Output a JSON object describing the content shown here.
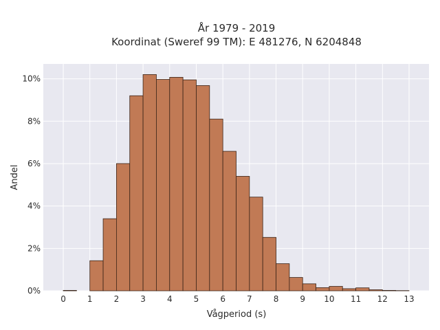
{
  "chart_data": {
    "type": "bar",
    "title_lines": [
      "År 1979 - 2019",
      "Koordinat (Sweref 99 TM): E 481276, N 6204848"
    ],
    "xlabel": "Vågperiod (s)",
    "ylabel": "Andel",
    "x_ticks": [
      "0",
      "1",
      "2",
      "3",
      "4",
      "5",
      "6",
      "7",
      "8",
      "9",
      "10",
      "11",
      "12",
      "13"
    ],
    "y_ticks": [
      "0%",
      "2%",
      "4%",
      "6%",
      "8%",
      "10%"
    ],
    "xlim": [
      -0.75,
      13.75
    ],
    "ylim": [
      0,
      10.7
    ],
    "bin_width": 0.5,
    "bins_start": [
      0,
      0.5,
      1,
      1.5,
      2,
      2.5,
      3,
      3.5,
      4,
      4.5,
      5,
      5.5,
      6,
      6.5,
      7,
      7.5,
      8,
      8.5,
      9,
      9.5,
      10,
      10.5,
      11,
      11.5,
      12,
      12.5
    ],
    "values": [
      0.02,
      0.0,
      1.42,
      3.4,
      6.0,
      9.2,
      10.2,
      9.97,
      10.07,
      9.95,
      9.68,
      8.1,
      6.58,
      5.4,
      4.42,
      2.52,
      1.28,
      0.63,
      0.33,
      0.15,
      0.21,
      0.1,
      0.14,
      0.05,
      0.02,
      0.01
    ],
    "grid": true,
    "bar_color": "#c17a55",
    "bar_edge_color": "#3a2418",
    "background_color": "#e8e8f0"
  }
}
